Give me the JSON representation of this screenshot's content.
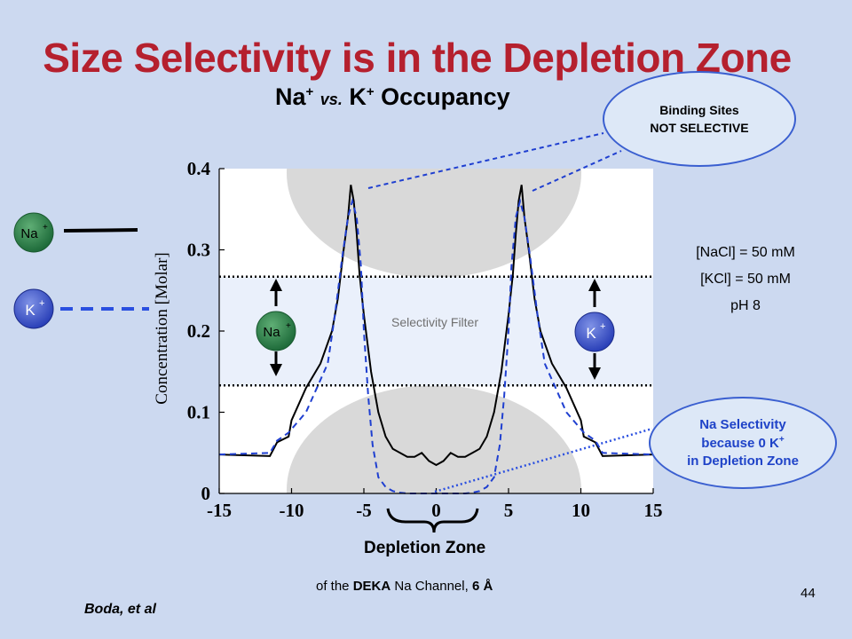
{
  "slide": {
    "title": "Size Selectivity is in the Depletion Zone",
    "subtitle_ion1": "Na",
    "subtitle_vs": "vs.",
    "subtitle_ion2": "K",
    "subtitle_tail": "Occupancy",
    "subtitle_sup": "+",
    "page_number": "44",
    "citation": "Boda, et al"
  },
  "callouts": {
    "binding_line1": "Binding Sites",
    "binding_line2": "NOT SELECTIVE",
    "selectivity_line1": "Na Selectivity",
    "selectivity_line2": "because 0 K",
    "selectivity_sup": "+",
    "selectivity_line3": "in Depletion Zone"
  },
  "conditions": {
    "nacl": "[NaCl] = 50 mM",
    "kcl": "[KCl] = 50 mM",
    "ph": "pH 8"
  },
  "legend": {
    "na_label": "Na",
    "k_label": "K",
    "sup": "+"
  },
  "annotations": {
    "selectivity_filter": "Selectivity Filter",
    "depletion_zone": "Depletion Zone",
    "footnote_prefix": "of the",
    "footnote_bold1": "DEKA",
    "footnote_mid": "Na Channel,",
    "footnote_bold2": "6 Å"
  },
  "colors": {
    "title": "#b5202e",
    "na_series": "#000000",
    "k_series": "#1f3fd0",
    "na_ion": "#1e6b3a",
    "k_ion": "#2a40b8",
    "background": "#ccd9f0"
  },
  "chart_data": {
    "type": "line",
    "title": "",
    "xlabel": "",
    "ylabel": "Concentration   [Molar]",
    "xlim": [
      -15,
      15
    ],
    "ylim": [
      0,
      0.4
    ],
    "xticks": [
      "-15",
      "-10",
      "-5",
      "0",
      "5",
      "10",
      "15"
    ],
    "yticks": [
      "0",
      "0.1",
      "0.2",
      "0.3",
      "0.4"
    ],
    "grid": false,
    "selectivity_filter_y": [
      0.133,
      0.267
    ],
    "series": [
      {
        "name": "Na",
        "style": "solid",
        "x": [
          -15,
          -11.5,
          -11,
          -10.2,
          -10,
          -9,
          -8,
          -7.2,
          -6.8,
          -6.4,
          -6.1,
          -5.9,
          -5.7,
          -5.5,
          -5.3,
          -5,
          -4.5,
          -4,
          -3.5,
          -3,
          -2.5,
          -2,
          -1.5,
          -1,
          -0.5,
          0,
          0.5,
          1,
          1.5,
          2,
          2.5,
          3,
          3.5,
          4,
          4.5,
          5,
          5.3,
          5.5,
          5.7,
          5.9,
          6.1,
          6.4,
          6.8,
          7.2,
          8,
          9,
          10,
          10.2,
          11,
          11.5,
          15
        ],
        "y": [
          0.048,
          0.046,
          0.063,
          0.07,
          0.09,
          0.13,
          0.16,
          0.2,
          0.24,
          0.3,
          0.34,
          0.38,
          0.36,
          0.32,
          0.27,
          0.22,
          0.15,
          0.1,
          0.07,
          0.055,
          0.05,
          0.045,
          0.045,
          0.05,
          0.04,
          0.035,
          0.04,
          0.05,
          0.045,
          0.045,
          0.05,
          0.055,
          0.07,
          0.1,
          0.15,
          0.22,
          0.27,
          0.32,
          0.36,
          0.38,
          0.34,
          0.3,
          0.24,
          0.2,
          0.16,
          0.13,
          0.09,
          0.07,
          0.063,
          0.046,
          0.048
        ]
      },
      {
        "name": "K",
        "style": "dashed",
        "x": [
          -15,
          -11.5,
          -11,
          -10.2,
          -9,
          -7.5,
          -7,
          -6.5,
          -6.1,
          -5.8,
          -5.5,
          -5.2,
          -5,
          -4.7,
          -4.4,
          -4,
          -3.5,
          -3,
          -2.5,
          -2,
          0,
          2,
          2.5,
          3,
          3.5,
          4,
          4.4,
          4.7,
          5,
          5.2,
          5.5,
          5.8,
          6.1,
          6.5,
          7,
          7.5,
          9,
          10.2,
          11,
          11.5,
          15
        ],
        "y": [
          0.048,
          0.05,
          0.065,
          0.075,
          0.1,
          0.16,
          0.22,
          0.29,
          0.34,
          0.36,
          0.34,
          0.28,
          0.2,
          0.12,
          0.06,
          0.02,
          0.008,
          0.003,
          0.001,
          0,
          0,
          0,
          0.001,
          0.003,
          0.008,
          0.02,
          0.06,
          0.12,
          0.2,
          0.28,
          0.34,
          0.36,
          0.34,
          0.29,
          0.22,
          0.16,
          0.1,
          0.075,
          0.065,
          0.05,
          0.048
        ]
      }
    ]
  }
}
